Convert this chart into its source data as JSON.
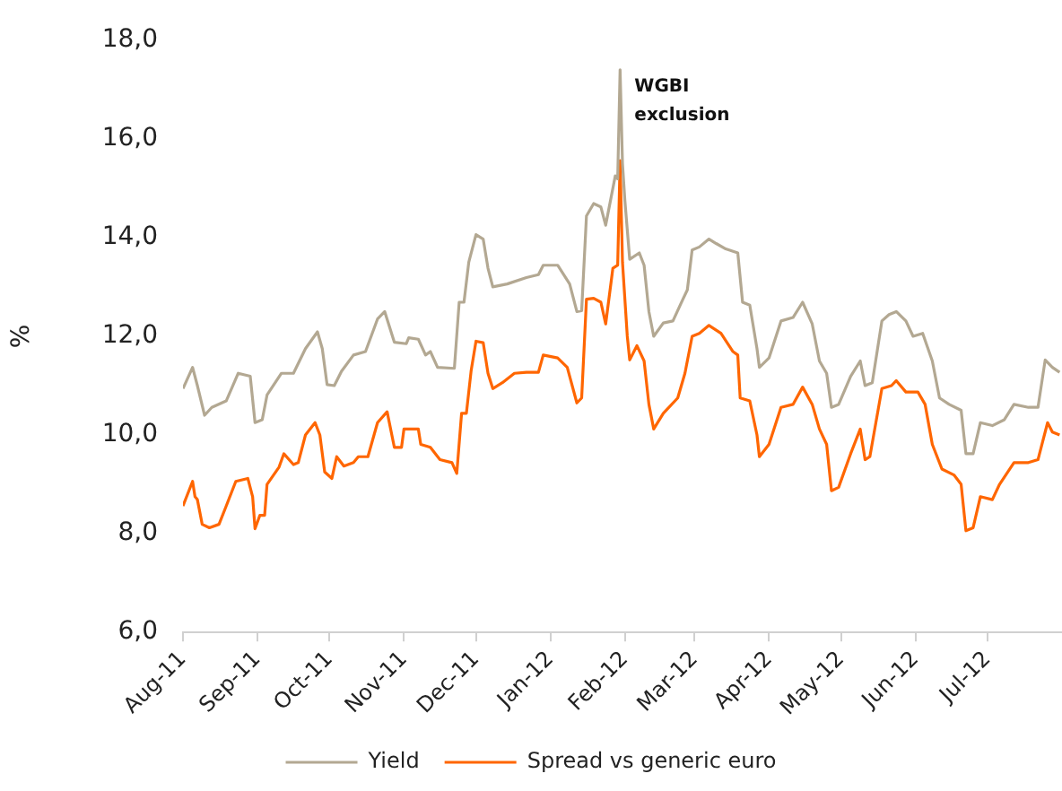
{
  "chart_data": {
    "type": "line",
    "ylabel": "%",
    "legend": "bottom",
    "grid": false,
    "xlim": [
      "2011-08-01",
      "2012-08-01"
    ],
    "xticks": [
      {
        "value": "2011-08-01",
        "label": "Aug-11"
      },
      {
        "value": "2011-09-01",
        "label": "Sep-11"
      },
      {
        "value": "2011-10-01",
        "label": "Oct-11"
      },
      {
        "value": "2011-11-01",
        "label": "Nov-11"
      },
      {
        "value": "2011-12-01",
        "label": "Dec-11"
      },
      {
        "value": "2012-01-01",
        "label": "Jan-12"
      },
      {
        "value": "2012-02-01",
        "label": "Feb-12"
      },
      {
        "value": "2012-03-01",
        "label": "Mar-12"
      },
      {
        "value": "2012-04-01",
        "label": "Apr-12"
      },
      {
        "value": "2012-05-01",
        "label": "May-12"
      },
      {
        "value": "2012-06-01",
        "label": "Jun-12"
      },
      {
        "value": "2012-07-01",
        "label": "Jul-12"
      }
    ],
    "ylim": [
      6,
      18
    ],
    "yticks": [
      {
        "value": 6,
        "label": "6,0"
      },
      {
        "value": 8,
        "label": "8,0"
      },
      {
        "value": 10,
        "label": "10,0"
      },
      {
        "value": 12,
        "label": "12,0"
      },
      {
        "value": 14,
        "label": "14,0"
      },
      {
        "value": 16,
        "label": "16,0"
      },
      {
        "value": 18,
        "label": "18,0"
      }
    ],
    "annotations": [
      {
        "text": "WGBI exclusion",
        "x": "2012-01-30",
        "y": 17.4
      }
    ],
    "series": [
      {
        "name": "Yield",
        "color": "#b3a892",
        "x": [
          "2011-08-01",
          "2011-08-05",
          "2011-08-07",
          "2011-08-10",
          "2011-08-13",
          "2011-08-19",
          "2011-08-24",
          "2011-08-29",
          "2011-08-31",
          "2011-09-03",
          "2011-09-05",
          "2011-09-11",
          "2011-09-16",
          "2011-09-21",
          "2011-09-26",
          "2011-09-28",
          "2011-09-30",
          "2011-10-03",
          "2011-10-06",
          "2011-10-11",
          "2011-10-16",
          "2011-10-21",
          "2011-10-24",
          "2011-10-28",
          "2011-11-02",
          "2011-11-03",
          "2011-11-07",
          "2011-11-10",
          "2011-11-12",
          "2011-11-15",
          "2011-11-22",
          "2011-11-24",
          "2011-11-26",
          "2011-11-28",
          "2011-12-01",
          "2011-12-04",
          "2011-12-06",
          "2011-12-08",
          "2011-12-14",
          "2011-12-22",
          "2011-12-27",
          "2011-12-29",
          "2012-01-04",
          "2012-01-09",
          "2012-01-12",
          "2012-01-14",
          "2012-01-16",
          "2012-01-19",
          "2012-01-22",
          "2012-01-24",
          "2012-01-28",
          "2012-01-29",
          "2012-01-30",
          "2012-01-31",
          "2012-02-01",
          "2012-02-03",
          "2012-02-07",
          "2012-02-09",
          "2012-02-11",
          "2012-02-13",
          "2012-02-17",
          "2012-02-21",
          "2012-02-24",
          "2012-02-27",
          "2012-02-29",
          "2012-03-03",
          "2012-03-07",
          "2012-03-10",
          "2012-03-14",
          "2012-03-19",
          "2012-03-21",
          "2012-03-24",
          "2012-03-27",
          "2012-03-28",
          "2012-04-01",
          "2012-04-06",
          "2012-04-11",
          "2012-04-15",
          "2012-04-19",
          "2012-04-22",
          "2012-04-25",
          "2012-04-27",
          "2012-04-30",
          "2012-05-05",
          "2012-05-09",
          "2012-05-11",
          "2012-05-14",
          "2012-05-18",
          "2012-05-21",
          "2012-05-24",
          "2012-05-28",
          "2012-05-31",
          "2012-06-04",
          "2012-06-08",
          "2012-06-11",
          "2012-06-15",
          "2012-06-20",
          "2012-06-22",
          "2012-06-25",
          "2012-06-28",
          "2012-07-03",
          "2012-07-08",
          "2012-07-12",
          "2012-07-18",
          "2012-07-22",
          "2012-07-25",
          "2012-07-28",
          "2012-07-31"
        ],
        "values": [
          10.94,
          11.37,
          11.0,
          10.4,
          10.56,
          10.69,
          11.25,
          11.19,
          10.25,
          10.31,
          10.81,
          11.25,
          11.25,
          11.75,
          12.09,
          11.75,
          11.02,
          11.0,
          11.29,
          11.62,
          11.69,
          12.35,
          12.5,
          11.88,
          11.85,
          11.97,
          11.94,
          11.62,
          11.69,
          11.37,
          11.35,
          12.69,
          12.69,
          13.5,
          14.06,
          13.97,
          13.38,
          13.0,
          13.06,
          13.19,
          13.25,
          13.44,
          13.44,
          13.06,
          12.5,
          12.52,
          14.44,
          14.69,
          14.62,
          14.25,
          15.25,
          15.19,
          17.4,
          15.5,
          14.75,
          13.56,
          13.69,
          13.44,
          12.5,
          12.0,
          12.27,
          12.31,
          12.63,
          12.94,
          13.75,
          13.81,
          13.97,
          13.88,
          13.77,
          13.69,
          12.69,
          12.63,
          11.75,
          11.37,
          11.56,
          12.31,
          12.38,
          12.69,
          12.25,
          11.5,
          11.25,
          10.56,
          10.62,
          11.19,
          11.5,
          11.0,
          11.06,
          12.31,
          12.44,
          12.5,
          12.31,
          12.0,
          12.06,
          11.5,
          10.75,
          10.62,
          10.5,
          9.62,
          9.62,
          10.25,
          10.19,
          10.31,
          10.62,
          10.56,
          10.56,
          11.52,
          11.37,
          11.27
        ]
      },
      {
        "name": "Spread vs generic euro",
        "color": "#ff6600",
        "x": [
          "2011-08-01",
          "2011-08-05",
          "2011-08-06",
          "2011-08-07",
          "2011-08-09",
          "2011-08-12",
          "2011-08-16",
          "2011-08-19",
          "2011-08-23",
          "2011-08-28",
          "2011-08-30",
          "2011-08-31",
          "2011-09-02",
          "2011-09-04",
          "2011-09-05",
          "2011-09-10",
          "2011-09-12",
          "2011-09-16",
          "2011-09-18",
          "2011-09-21",
          "2011-09-25",
          "2011-09-27",
          "2011-09-29",
          "2011-10-02",
          "2011-10-04",
          "2011-10-07",
          "2011-10-11",
          "2011-10-13",
          "2011-10-17",
          "2011-10-21",
          "2011-10-25",
          "2011-10-28",
          "2011-10-31",
          "2011-11-01",
          "2011-11-07",
          "2011-11-08",
          "2011-11-12",
          "2011-11-16",
          "2011-11-21",
          "2011-11-23",
          "2011-11-25",
          "2011-11-27",
          "2011-11-29",
          "2011-12-01",
          "2011-12-04",
          "2011-12-06",
          "2011-12-08",
          "2011-12-12",
          "2011-12-17",
          "2011-12-22",
          "2011-12-27",
          "2011-12-29",
          "2012-01-04",
          "2012-01-08",
          "2012-01-12",
          "2012-01-14",
          "2012-01-16",
          "2012-01-19",
          "2012-01-22",
          "2012-01-24",
          "2012-01-27",
          "2012-01-29",
          "2012-01-30",
          "2012-01-31",
          "2012-02-02",
          "2012-02-03",
          "2012-02-06",
          "2012-02-09",
          "2012-02-11",
          "2012-02-13",
          "2012-02-17",
          "2012-02-23",
          "2012-02-26",
          "2012-02-29",
          "2012-03-03",
          "2012-03-07",
          "2012-03-12",
          "2012-03-17",
          "2012-03-19",
          "2012-03-20",
          "2012-03-24",
          "2012-03-27",
          "2012-03-28",
          "2012-04-01",
          "2012-04-06",
          "2012-04-11",
          "2012-04-15",
          "2012-04-19",
          "2012-04-22",
          "2012-04-25",
          "2012-04-27",
          "2012-04-30",
          "2012-05-05",
          "2012-05-09",
          "2012-05-11",
          "2012-05-13",
          "2012-05-18",
          "2012-05-22",
          "2012-05-24",
          "2012-05-28",
          "2012-06-02",
          "2012-06-05",
          "2012-06-08",
          "2012-06-12",
          "2012-06-17",
          "2012-06-20",
          "2012-06-22",
          "2012-06-25",
          "2012-06-28",
          "2012-07-03",
          "2012-07-06",
          "2012-07-12",
          "2012-07-18",
          "2012-07-22",
          "2012-07-26",
          "2012-07-28",
          "2012-07-31"
        ],
        "values": [
          8.56,
          9.06,
          8.75,
          8.69,
          8.19,
          8.12,
          8.19,
          8.56,
          9.06,
          9.12,
          8.75,
          8.1,
          8.37,
          8.37,
          9.0,
          9.35,
          9.62,
          9.4,
          9.44,
          10.0,
          10.25,
          10.0,
          9.25,
          9.12,
          9.56,
          9.37,
          9.44,
          9.56,
          9.56,
          10.25,
          10.47,
          9.75,
          9.75,
          10.12,
          10.12,
          9.81,
          9.75,
          9.5,
          9.44,
          9.22,
          10.44,
          10.44,
          11.31,
          11.9,
          11.87,
          11.25,
          10.94,
          11.06,
          11.25,
          11.27,
          11.27,
          11.62,
          11.56,
          11.37,
          10.65,
          10.75,
          12.75,
          12.77,
          12.69,
          12.25,
          13.38,
          13.44,
          15.56,
          13.5,
          12.0,
          11.52,
          11.81,
          11.5,
          10.62,
          10.12,
          10.44,
          10.75,
          11.25,
          12.0,
          12.06,
          12.22,
          12.06,
          11.69,
          11.62,
          10.75,
          10.69,
          10.0,
          9.56,
          9.81,
          10.56,
          10.62,
          10.97,
          10.62,
          10.12,
          9.81,
          8.87,
          8.94,
          9.62,
          10.12,
          9.5,
          9.56,
          10.94,
          11.0,
          11.1,
          10.87,
          10.87,
          10.62,
          9.81,
          9.31,
          9.19,
          9.0,
          8.06,
          8.12,
          8.75,
          8.69,
          9.0,
          9.44,
          9.44,
          9.5,
          10.25,
          10.06,
          10.0
        ]
      }
    ]
  }
}
